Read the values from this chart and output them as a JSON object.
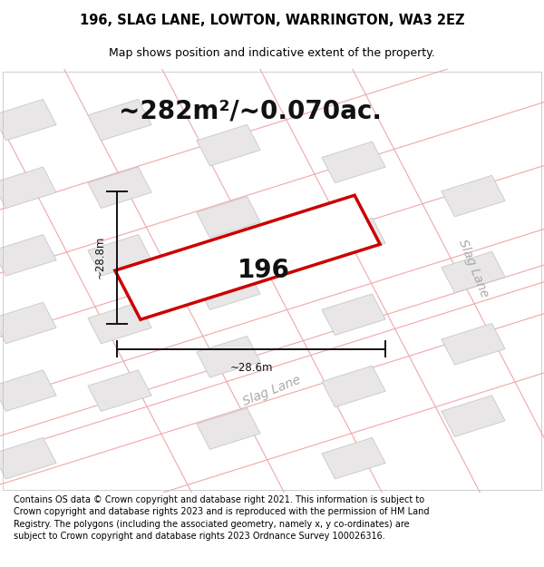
{
  "title_line1": "196, SLAG LANE, LOWTON, WARRINGTON, WA3 2EZ",
  "title_line2": "Map shows position and indicative extent of the property.",
  "area_text": "~282m²/~0.070ac.",
  "property_number": "196",
  "width_label": "~28.6m",
  "height_label": "~28.8m",
  "slag_lane_label_bottom": "Slag Lane",
  "slag_lane_label_right": "Slag Lane",
  "footer_text": "Contains OS data © Crown copyright and database right 2021. This information is subject to Crown copyright and database rights 2023 and is reproduced with the permission of HM Land Registry. The polygons (including the associated geometry, namely x, y co-ordinates) are subject to Crown copyright and database rights 2023 Ordnance Survey 100026316.",
  "map_bg_color": "#f7f4f4",
  "property_fill": "#ffffff",
  "property_edge": "#cc0000",
  "building_fill": "#e8e6e6",
  "building_edge": "#c8c8c8",
  "road_line_color": "#f0a8a8",
  "road_fill_color": "#f9f5f5",
  "dim_line_color": "#111111",
  "title_fontsize": 10.5,
  "subtitle_fontsize": 9,
  "area_fontsize": 20,
  "number_fontsize": 20,
  "label_fontsize": 8.5,
  "slag_lane_fontsize": 10,
  "footer_fontsize": 7.0
}
